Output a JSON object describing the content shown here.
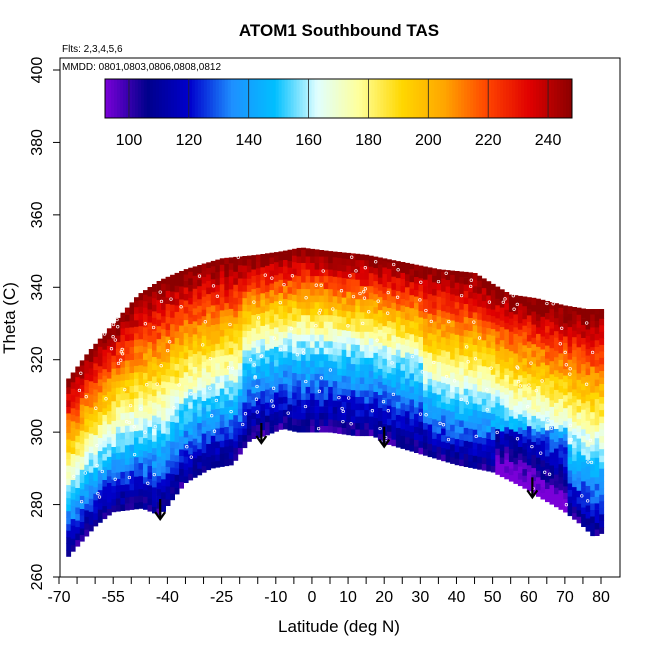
{
  "chart_data": {
    "type": "heatmap",
    "title": "ATOM1 Southbound TAS",
    "subtitle_flights": "Flts: 2,3,4,5,6",
    "subtitle_dates": "MMDD: 0801,0803,0806,0808,0812",
    "xlabel": "Latitude (deg N)",
    "ylabel": "Theta (C)",
    "xlim": [
      -70,
      80
    ],
    "ylim": [
      260,
      400
    ],
    "x_ticks_labeled": [
      -70,
      -55,
      -40,
      -25,
      -10,
      0,
      10,
      20,
      30,
      40,
      50,
      60,
      70,
      80
    ],
    "x_ticks_minor": [
      -65,
      -60,
      -50,
      -45,
      -35,
      -30,
      -20,
      -15,
      -5,
      5,
      15,
      25,
      35,
      45,
      55,
      65,
      75
    ],
    "y_ticks": [
      260,
      280,
      300,
      320,
      340,
      360,
      380,
      400
    ],
    "colorbar": {
      "min": 92,
      "max": 248,
      "tick_values": [
        100,
        120,
        140,
        160,
        180,
        200,
        220,
        240
      ],
      "colors": [
        "#7a00d8",
        "#00008b",
        "#0000cd",
        "#1e90ff",
        "#00bfff",
        "#e0ffff",
        "#ffff99",
        "#ffd700",
        "#ffa500",
        "#ff4500",
        "#e00000",
        "#8b0000"
      ]
    },
    "lower_boundary": [
      [
        -68,
        265
      ],
      [
        -60,
        274
      ],
      [
        -55,
        278
      ],
      [
        -47,
        279
      ],
      [
        -42,
        277
      ],
      [
        -35,
        286
      ],
      [
        -28,
        290
      ],
      [
        -22,
        291
      ],
      [
        -17,
        298
      ],
      [
        -13,
        299
      ],
      [
        -8,
        301
      ],
      [
        -4,
        300
      ],
      [
        0,
        300
      ],
      [
        5,
        300
      ],
      [
        12,
        299
      ],
      [
        17,
        299
      ],
      [
        20,
        297
      ],
      [
        30,
        294
      ],
      [
        40,
        291
      ],
      [
        50,
        289
      ],
      [
        58,
        285
      ],
      [
        63,
        282
      ],
      [
        70,
        278
      ],
      [
        75,
        274
      ],
      [
        78,
        271
      ],
      [
        80,
        272
      ]
    ],
    "upper_boundary": [
      [
        -68,
        314
      ],
      [
        -62,
        322
      ],
      [
        -55,
        330
      ],
      [
        -48,
        338
      ],
      [
        -42,
        342
      ],
      [
        -35,
        345
      ],
      [
        -25,
        348
      ],
      [
        -15,
        349
      ],
      [
        -8,
        350
      ],
      [
        -3,
        351
      ],
      [
        5,
        350
      ],
      [
        15,
        349
      ],
      [
        25,
        347
      ],
      [
        35,
        345
      ],
      [
        45,
        344
      ],
      [
        50,
        341
      ],
      [
        55,
        338
      ],
      [
        62,
        337
      ],
      [
        70,
        335
      ],
      [
        76,
        334
      ],
      [
        79,
        334
      ]
    ],
    "arrows": [
      {
        "lat": -42,
        "theta": 276
      },
      {
        "lat": -14,
        "theta": 297
      },
      {
        "lat": 20,
        "theta": 296
      },
      {
        "lat": 61,
        "theta": 282
      }
    ],
    "tas_field_description": "TAS increases upward from ~100 near the lower boundary to ~240 near the top; coldest values (<120) near 55-65N below 300C; warmest (>230) above 330C"
  }
}
